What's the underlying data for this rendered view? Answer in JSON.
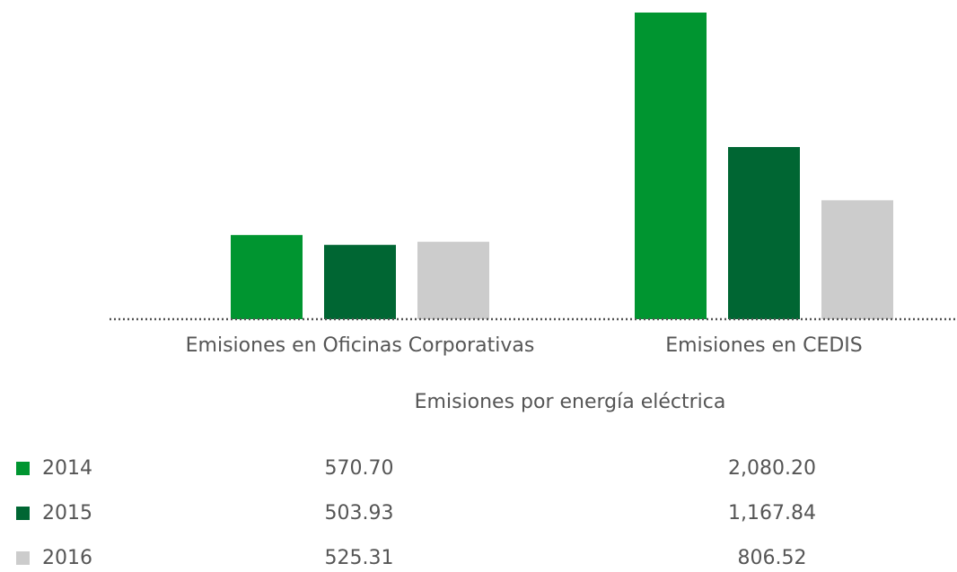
{
  "chart_data": {
    "type": "bar",
    "x_label": "Emisiones por energía eléctrica",
    "categories": [
      "Emisiones en Oficinas Corporativas",
      "Emisiones en CEDIS"
    ],
    "series": [
      {
        "name": "2014",
        "color": "#009530",
        "values": [
          570.7,
          2080.2
        ],
        "value_labels": [
          "570.70",
          "2,080.20"
        ]
      },
      {
        "name": "2015",
        "color": "#006633",
        "values": [
          503.93,
          1167.84
        ],
        "value_labels": [
          "503.93",
          "1,167.84"
        ]
      },
      {
        "name": "2016",
        "color": "#cccccc",
        "values": [
          525.31,
          806.52
        ],
        "value_labels": [
          "525.31",
          "806.52"
        ]
      }
    ]
  }
}
